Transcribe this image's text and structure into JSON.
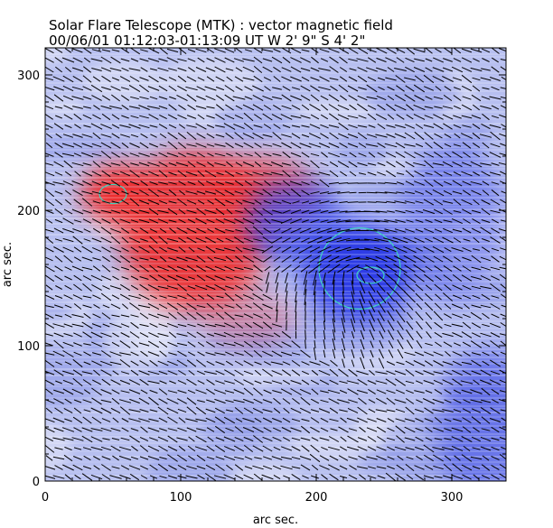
{
  "header": {
    "title": "Solar Flare Telescope (MTK) : vector magnetic field",
    "subtitle": "00/06/01   01:12:03-01:13:09 UT     W 2' 9\"    S 4' 2\""
  },
  "chart_data": {
    "type": "heatmap",
    "title": "Solar Flare Telescope (MTK) : vector magnetic field",
    "subtitle": "00/06/01   01:12:03-01:13:09 UT     W 2' 9\"    S 4' 2\"",
    "xlabel": "arc sec.",
    "ylabel": "arc sec.",
    "xlim": [
      0,
      340
    ],
    "ylim": [
      0,
      320
    ],
    "xticks": [
      0,
      100,
      200,
      300
    ],
    "yticks": [
      0,
      100,
      200,
      300
    ],
    "x_tick_labels": [
      "0",
      "100",
      "200",
      "300"
    ],
    "y_tick_labels": [
      "0",
      "100",
      "200",
      "300"
    ],
    "colors": {
      "positive_polarity": "#ee2c2c",
      "negative_polarity": "#2e3de6",
      "background": "#b4bdf0",
      "contour": "#3fd6c0",
      "vectors": "#000000"
    },
    "regions": [
      {
        "polarity": "positive",
        "center": [
          110,
          185
        ],
        "radius_x": 55,
        "radius_y": 60,
        "strength": 0.9
      },
      {
        "polarity": "positive",
        "center": [
          55,
          212
        ],
        "radius_x": 28,
        "radius_y": 22,
        "strength": 1.0
      },
      {
        "polarity": "positive",
        "center": [
          160,
          210
        ],
        "radius_x": 40,
        "radius_y": 30,
        "strength": 0.7
      },
      {
        "polarity": "positive",
        "center": [
          150,
          120
        ],
        "radius_x": 35,
        "radius_y": 20,
        "strength": 0.35
      },
      {
        "polarity": "negative",
        "center": [
          232,
          155
        ],
        "radius_x": 42,
        "radius_y": 38,
        "strength": 1.0
      },
      {
        "polarity": "negative",
        "center": [
          185,
          190
        ],
        "radius_x": 38,
        "radius_y": 30,
        "strength": 0.75
      },
      {
        "polarity": "negative",
        "center": [
          300,
          190
        ],
        "radius_x": 40,
        "radius_y": 60,
        "strength": 0.45
      },
      {
        "polarity": "negative",
        "center": [
          330,
          40
        ],
        "radius_x": 40,
        "radius_y": 60,
        "strength": 0.5
      }
    ],
    "contours": [
      {
        "center": [
          232,
          157
        ],
        "radius_x": 30,
        "radius_y": 30
      },
      {
        "center": [
          240,
          152
        ],
        "radius_x": 10,
        "radius_y": 6
      },
      {
        "center": [
          50,
          212
        ],
        "radius_x": 10,
        "radius_y": 7
      }
    ],
    "vector_grid_spacing": 7
  }
}
